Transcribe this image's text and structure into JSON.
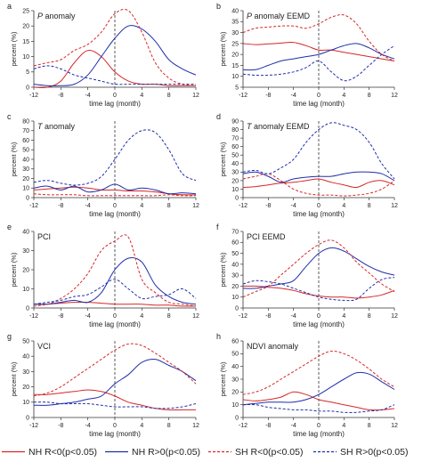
{
  "chart_data": [
    {
      "type": "line",
      "panel_label": "a",
      "title": "anomaly",
      "title_var": "P",
      "xlabel": "time lag (month)",
      "ylabel": "percent (%)",
      "xlim": [
        -12,
        12
      ],
      "ylim": [
        0,
        25
      ],
      "xticks": [
        -12,
        -8,
        -4,
        0,
        4,
        8,
        12
      ],
      "yticks": [
        0,
        5,
        10,
        15,
        20,
        25
      ],
      "x": [
        -12,
        -10,
        -8,
        -6,
        -4,
        -2,
        0,
        2,
        4,
        6,
        8,
        10,
        12
      ],
      "series": [
        {
          "key": "nh_neg",
          "values": [
            0,
            0,
            2,
            8,
            12,
            10,
            5,
            2,
            1,
            1,
            0.5,
            0.5,
            0.5
          ]
        },
        {
          "key": "nh_pos",
          "values": [
            1,
            0.5,
            0.5,
            1,
            4,
            10,
            16,
            20,
            19,
            15,
            9,
            6,
            4
          ]
        },
        {
          "key": "sh_neg",
          "values": [
            7,
            8,
            9,
            12,
            14,
            18,
            24,
            25,
            18,
            8,
            3,
            1,
            0.5
          ]
        },
        {
          "key": "sh_pos",
          "values": [
            6,
            7,
            6,
            4,
            3,
            2,
            1,
            1,
            1,
            1,
            1,
            1,
            1
          ]
        }
      ]
    },
    {
      "type": "line",
      "panel_label": "b",
      "title": "anomaly EEMD",
      "title_var": "P",
      "xlabel": "time lag (month)",
      "ylabel": "percent (%)",
      "xlim": [
        -12,
        12
      ],
      "ylim": [
        5,
        40
      ],
      "xticks": [
        -12,
        -8,
        -4,
        0,
        4,
        8,
        12
      ],
      "yticks": [
        5,
        10,
        15,
        20,
        25,
        30,
        35,
        40
      ],
      "x": [
        -12,
        -10,
        -8,
        -6,
        -4,
        -2,
        0,
        2,
        4,
        6,
        8,
        10,
        12
      ],
      "series": [
        {
          "key": "nh_neg",
          "values": [
            25,
            24.5,
            24.8,
            25.2,
            25.5,
            24,
            22,
            22,
            21,
            20,
            19,
            18,
            17
          ]
        },
        {
          "key": "nh_pos",
          "values": [
            13,
            13,
            15,
            17,
            18,
            19,
            20,
            22,
            24,
            25,
            23,
            20,
            18
          ]
        },
        {
          "key": "sh_neg",
          "values": [
            30,
            32,
            32.5,
            33,
            33,
            32,
            34,
            37,
            38,
            34,
            26,
            20,
            17
          ]
        },
        {
          "key": "sh_pos",
          "values": [
            11,
            10.5,
            10.5,
            11,
            12,
            14,
            17,
            12,
            8,
            10,
            15,
            20,
            24
          ]
        }
      ]
    },
    {
      "type": "line",
      "panel_label": "c",
      "title": "anomaly",
      "title_var": "T",
      "xlabel": "time lag (month)",
      "ylabel": "percent (%)",
      "xlim": [
        -12,
        12
      ],
      "ylim": [
        0,
        80
      ],
      "xticks": [
        -12,
        -8,
        -4,
        0,
        4,
        8,
        12
      ],
      "yticks": [
        0,
        10,
        20,
        30,
        40,
        50,
        60,
        70,
        80
      ],
      "x": [
        -12,
        -10,
        -8,
        -6,
        -4,
        -2,
        0,
        2,
        4,
        6,
        8,
        10,
        12
      ],
      "series": [
        {
          "key": "nh_neg",
          "values": [
            8,
            9,
            10,
            11,
            10,
            8,
            8,
            7,
            7,
            6,
            4,
            3,
            3
          ]
        },
        {
          "key": "nh_pos",
          "values": [
            10,
            12,
            8,
            12,
            6,
            8,
            14,
            8,
            10,
            8,
            4,
            5,
            4
          ]
        },
        {
          "key": "sh_neg",
          "values": [
            4,
            3,
            3,
            3,
            2,
            2,
            2,
            2,
            2,
            2,
            3,
            2,
            2
          ]
        },
        {
          "key": "sh_pos",
          "values": [
            16,
            18,
            15,
            13,
            15,
            22,
            40,
            60,
            70,
            68,
            50,
            25,
            18
          ]
        }
      ]
    },
    {
      "type": "line",
      "panel_label": "d",
      "title": "anomaly EEMD",
      "title_var": "T",
      "xlabel": "time lag (month)",
      "ylabel": "percent (%)",
      "xlim": [
        -12,
        12
      ],
      "ylim": [
        0,
        90
      ],
      "xticks": [
        -12,
        -8,
        -4,
        0,
        4,
        8,
        12
      ],
      "yticks": [
        0,
        10,
        20,
        30,
        40,
        50,
        60,
        70,
        80,
        90
      ],
      "x": [
        -12,
        -10,
        -8,
        -6,
        -4,
        -2,
        0,
        2,
        4,
        6,
        8,
        10,
        12
      ],
      "series": [
        {
          "key": "nh_neg",
          "values": [
            12,
            13,
            15,
            17,
            18,
            20,
            22,
            18,
            15,
            12,
            18,
            20,
            15
          ]
        },
        {
          "key": "nh_pos",
          "values": [
            28,
            30,
            25,
            18,
            22,
            24,
            25,
            25,
            28,
            30,
            30,
            28,
            20
          ]
        },
        {
          "key": "sh_neg",
          "values": [
            22,
            25,
            28,
            20,
            10,
            5,
            3,
            3,
            2,
            3,
            5,
            10,
            20
          ]
        },
        {
          "key": "sh_pos",
          "values": [
            30,
            32,
            28,
            35,
            45,
            65,
            80,
            88,
            85,
            80,
            65,
            40,
            22
          ]
        }
      ]
    },
    {
      "type": "line",
      "panel_label": "e",
      "title": "PCI",
      "title_var": "",
      "xlabel": "time lag (month)",
      "ylabel": "percent (%)",
      "xlim": [
        -12,
        12
      ],
      "ylim": [
        0,
        40
      ],
      "xticks": [
        -12,
        -8,
        -4,
        0,
        4,
        8,
        12
      ],
      "yticks": [
        0,
        10,
        20,
        30,
        40
      ],
      "x": [
        -12,
        -10,
        -8,
        -6,
        -4,
        -2,
        0,
        2,
        4,
        6,
        8,
        10,
        12
      ],
      "series": [
        {
          "key": "nh_neg",
          "values": [
            2,
            2,
            2.5,
            3,
            3,
            2.5,
            2,
            2,
            2,
            1.5,
            1.5,
            1,
            1
          ]
        },
        {
          "key": "nh_pos",
          "values": [
            2,
            2,
            3,
            4,
            3,
            8,
            20,
            26,
            24,
            12,
            6,
            3,
            2
          ]
        },
        {
          "key": "sh_neg",
          "values": [
            1,
            2,
            5,
            10,
            18,
            30,
            35,
            37,
            15,
            8,
            3,
            2,
            1
          ]
        },
        {
          "key": "sh_pos",
          "values": [
            2,
            3,
            4,
            6,
            7,
            11,
            15,
            10,
            5,
            6,
            7,
            10,
            5
          ]
        }
      ]
    },
    {
      "type": "line",
      "panel_label": "f",
      "title": "PCI EEMD",
      "title_var": "",
      "xlabel": "time lag (month)",
      "ylabel": "percent (%)",
      "xlim": [
        -12,
        12
      ],
      "ylim": [
        0,
        70
      ],
      "xticks": [
        -12,
        -8,
        -4,
        0,
        4,
        8,
        12
      ],
      "yticks": [
        0,
        10,
        20,
        30,
        40,
        50,
        60,
        70
      ],
      "x": [
        -12,
        -10,
        -8,
        -6,
        -4,
        -2,
        0,
        2,
        4,
        6,
        8,
        10,
        12
      ],
      "series": [
        {
          "key": "nh_neg",
          "values": [
            20,
            20,
            19,
            18,
            16,
            13,
            11,
            10,
            10,
            9,
            10,
            12,
            16
          ]
        },
        {
          "key": "nh_pos",
          "values": [
            18,
            18,
            20,
            22,
            25,
            38,
            50,
            55,
            52,
            45,
            38,
            33,
            30
          ]
        },
        {
          "key": "sh_neg",
          "values": [
            10,
            15,
            20,
            30,
            40,
            50,
            58,
            62,
            55,
            42,
            32,
            22,
            15
          ]
        },
        {
          "key": "sh_pos",
          "values": [
            22,
            25,
            24,
            22,
            18,
            14,
            10,
            8,
            7,
            8,
            18,
            26,
            28
          ]
        }
      ]
    },
    {
      "type": "line",
      "panel_label": "g",
      "title": "VCI",
      "title_var": "",
      "xlabel": "time lag (month)",
      "ylabel": "percent (%)",
      "xlim": [
        -12,
        12
      ],
      "ylim": [
        0,
        50
      ],
      "xticks": [
        -12,
        -8,
        -4,
        0,
        4,
        8,
        12
      ],
      "yticks": [
        0,
        10,
        20,
        30,
        40,
        50
      ],
      "x": [
        -12,
        -10,
        -8,
        -6,
        -4,
        -2,
        0,
        2,
        4,
        6,
        8,
        10,
        12
      ],
      "series": [
        {
          "key": "nh_neg",
          "values": [
            15,
            15,
            16,
            17,
            18,
            17,
            14,
            10,
            8,
            6,
            5,
            5,
            5
          ]
        },
        {
          "key": "nh_pos",
          "values": [
            8,
            8,
            9,
            10,
            12,
            14,
            22,
            28,
            36,
            38,
            34,
            30,
            24
          ]
        },
        {
          "key": "sh_neg",
          "values": [
            14,
            16,
            20,
            26,
            32,
            38,
            44,
            48,
            47,
            42,
            36,
            30,
            22
          ]
        },
        {
          "key": "sh_pos",
          "values": [
            10,
            10,
            9,
            9,
            9,
            8,
            7,
            7,
            7,
            6,
            6,
            7,
            9
          ]
        }
      ]
    },
    {
      "type": "line",
      "panel_label": "h",
      "title": "NDVI anomaly",
      "title_var": "",
      "xlabel": "time lag (month)",
      "ylabel": "percent (%)",
      "xlim": [
        -12,
        12
      ],
      "ylim": [
        0,
        60
      ],
      "xticks": [
        -12,
        -8,
        -4,
        0,
        4,
        8,
        12
      ],
      "yticks": [
        0,
        10,
        20,
        30,
        40,
        50,
        60
      ],
      "x": [
        -12,
        -10,
        -8,
        -6,
        -4,
        -2,
        0,
        2,
        4,
        6,
        8,
        10,
        12
      ],
      "series": [
        {
          "key": "nh_neg",
          "values": [
            14,
            13,
            14,
            16,
            20,
            18,
            14,
            12,
            10,
            8,
            6,
            6,
            7
          ]
        },
        {
          "key": "nh_pos",
          "values": [
            10,
            11,
            12,
            12,
            12,
            14,
            18,
            24,
            30,
            35,
            34,
            28,
            22
          ]
        },
        {
          "key": "sh_neg",
          "values": [
            18,
            20,
            24,
            30,
            36,
            42,
            48,
            52,
            50,
            45,
            38,
            30,
            24
          ]
        },
        {
          "key": "sh_pos",
          "values": [
            10,
            10,
            8,
            7,
            6,
            6,
            5,
            5,
            4,
            4,
            5,
            6,
            10
          ]
        }
      ]
    }
  ],
  "legend": {
    "placement": "bottom",
    "items": [
      {
        "key": "nh_neg",
        "label": "NH R<0(p<0.05)",
        "color": "#d62728",
        "dash": false
      },
      {
        "key": "nh_pos",
        "label": "NH R>0(p<0.05)",
        "color": "#1f2fa8",
        "dash": false
      },
      {
        "key": "sh_neg",
        "label": "SH R<0(p<0.05)",
        "color": "#d62728",
        "dash": true
      },
      {
        "key": "sh_pos",
        "label": "SH R>0(p<0.05)",
        "color": "#1f2fa8",
        "dash": true
      }
    ]
  }
}
